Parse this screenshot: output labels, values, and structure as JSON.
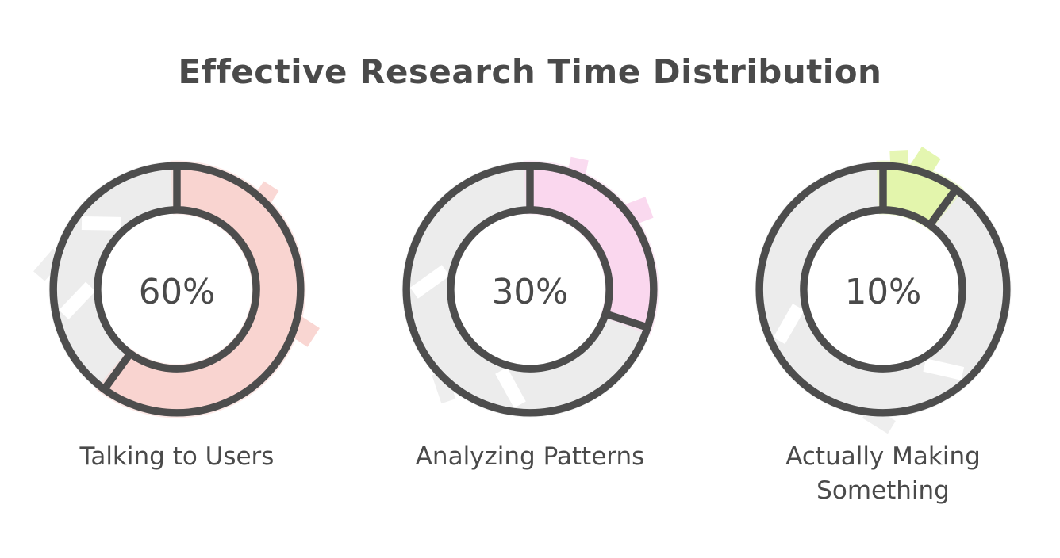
{
  "title": "Effective Research Time Distribution",
  "style": {
    "background": "#ffffff",
    "stroke_color": "#4d4d4d",
    "text_color": "#4a4a4a",
    "track_color": "#ececec",
    "outline_width": 10
  },
  "chart_data": [
    {
      "type": "pie",
      "variant": "donut-gauge",
      "label": "Talking to Users",
      "value": 60,
      "remainder": 40,
      "center_label": "60%",
      "fill_color": "#f9d4d0",
      "track_color": "#ececec",
      "start": "top",
      "direction": "clockwise"
    },
    {
      "type": "pie",
      "variant": "donut-gauge",
      "label": "Analyzing Patterns",
      "value": 30,
      "remainder": 70,
      "center_label": "30%",
      "fill_color": "#fad7ee",
      "track_color": "#ececec",
      "start": "top",
      "direction": "clockwise"
    },
    {
      "type": "pie",
      "variant": "donut-gauge",
      "label": "Actually Making Something",
      "value": 10,
      "remainder": 90,
      "center_label": "10%",
      "fill_color": "#e3f5ac",
      "track_color": "#ececec",
      "start": "top",
      "direction": "clockwise"
    }
  ]
}
